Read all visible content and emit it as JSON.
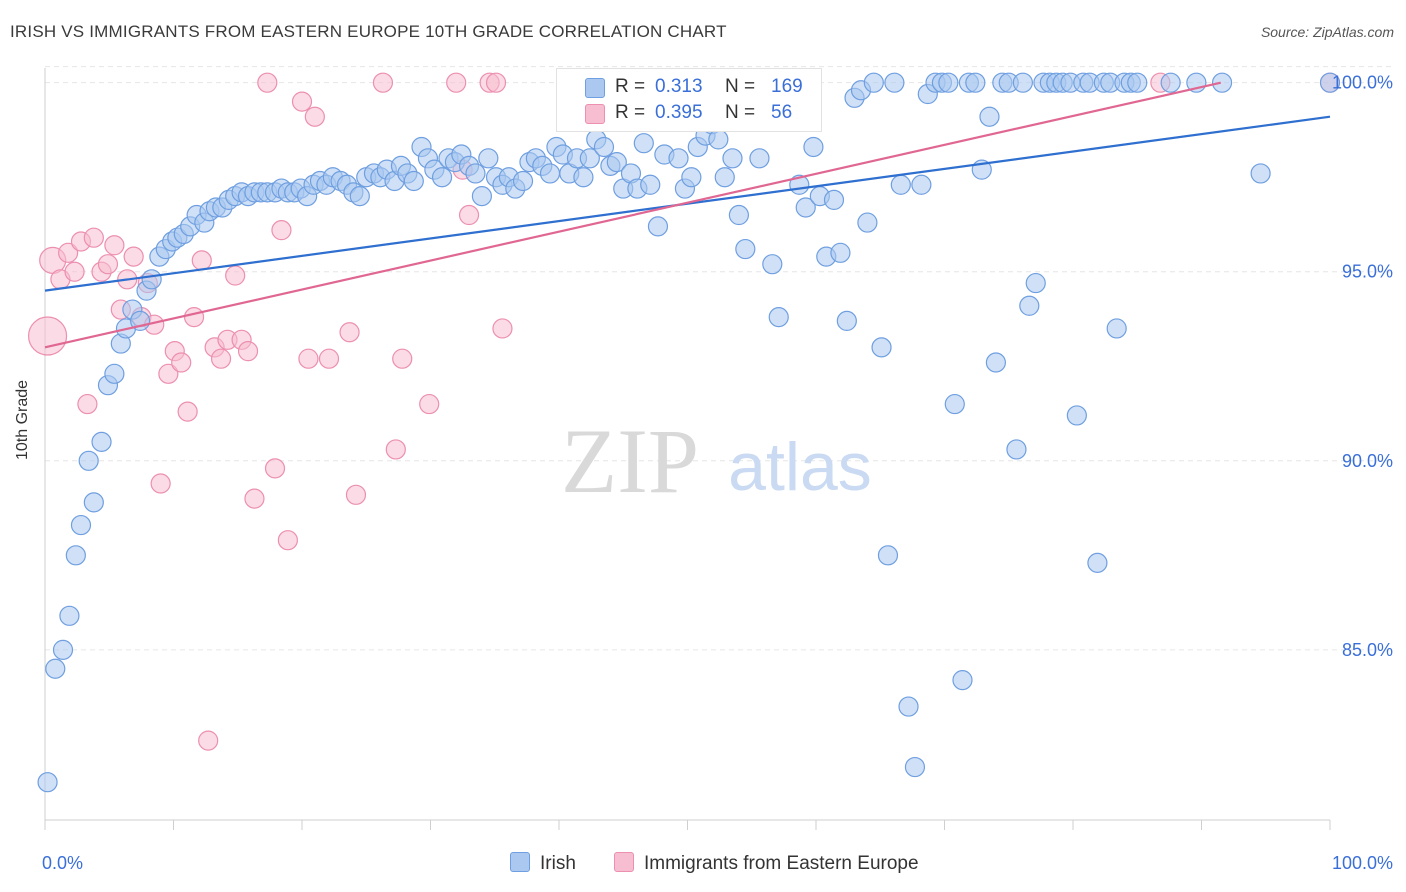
{
  "header": {
    "title": "IRISH VS IMMIGRANTS FROM EASTERN EUROPE 10TH GRADE CORRELATION CHART",
    "source": "Source: ZipAtlas.com"
  },
  "watermark": {
    "zip": "ZIP",
    "atlas": "atlas"
  },
  "legend": {
    "irish": {
      "r_label": "R =",
      "r_value": "0.313",
      "n_label": "N =",
      "n_value": "169"
    },
    "eastern": {
      "r_label": "R =",
      "r_value": "0.395",
      "n_label": "N =",
      "n_value": "56"
    }
  },
  "colors": {
    "irish_fill": "#aac8f0",
    "irish_stroke": "#6f9fe0",
    "irish_line": "#2e6fcf",
    "eastern_fill": "#f7bdd0",
    "eastern_stroke": "#ec8fb0",
    "eastern_line": "#e06792",
    "tick_label": "#3a6fd8",
    "grid": "#e6e6e6"
  },
  "chart_data": {
    "type": "scatter",
    "title": "IRISH VS IMMIGRANTS FROM EASTERN EUROPE 10TH GRADE CORRELATION CHART",
    "xlabel": "",
    "ylabel": "10th Grade",
    "xlim": [
      0,
      100
    ],
    "ylim": [
      80.5,
      100.6
    ],
    "x_tick_labels": [
      "0.0%",
      "100.0%"
    ],
    "y_ticks": [
      85,
      90,
      95,
      100
    ],
    "y_tick_labels": [
      "85.0%",
      "90.0%",
      "95.0%",
      "100.0%"
    ],
    "grid": true,
    "legend_position": "top-center",
    "series": [
      {
        "name": "Irish",
        "r": 0.313,
        "n": 169,
        "trend": {
          "x": [
            0,
            100
          ],
          "y": [
            94.5,
            99.1
          ]
        },
        "points": [
          [
            0.2,
            81.5
          ],
          [
            0.8,
            84.5
          ],
          [
            1.4,
            85.0
          ],
          [
            1.9,
            85.9
          ],
          [
            2.4,
            87.5
          ],
          [
            2.8,
            88.3
          ],
          [
            3.4,
            90.0
          ],
          [
            3.8,
            88.9
          ],
          [
            4.4,
            90.5
          ],
          [
            4.9,
            92.0
          ],
          [
            5.4,
            92.3
          ],
          [
            5.9,
            93.1
          ],
          [
            6.3,
            93.5
          ],
          [
            6.8,
            94.0
          ],
          [
            7.4,
            93.7
          ],
          [
            7.9,
            94.5
          ],
          [
            8.3,
            94.8
          ],
          [
            8.9,
            95.4
          ],
          [
            9.4,
            95.6
          ],
          [
            9.9,
            95.8
          ],
          [
            10.3,
            95.9
          ],
          [
            10.8,
            96.0
          ],
          [
            11.3,
            96.2
          ],
          [
            11.8,
            96.5
          ],
          [
            12.4,
            96.3
          ],
          [
            12.8,
            96.6
          ],
          [
            13.3,
            96.7
          ],
          [
            13.8,
            96.7
          ],
          [
            14.3,
            96.9
          ],
          [
            14.8,
            97.0
          ],
          [
            15.3,
            97.1
          ],
          [
            15.8,
            97.0
          ],
          [
            16.3,
            97.1
          ],
          [
            16.8,
            97.1
          ],
          [
            17.3,
            97.1
          ],
          [
            17.9,
            97.1
          ],
          [
            18.4,
            97.2
          ],
          [
            18.9,
            97.1
          ],
          [
            19.4,
            97.1
          ],
          [
            19.9,
            97.2
          ],
          [
            20.4,
            97.0
          ],
          [
            20.9,
            97.3
          ],
          [
            21.4,
            97.4
          ],
          [
            21.9,
            97.3
          ],
          [
            22.4,
            97.5
          ],
          [
            23.0,
            97.4
          ],
          [
            23.5,
            97.3
          ],
          [
            24.0,
            97.1
          ],
          [
            24.5,
            97.0
          ],
          [
            25.0,
            97.5
          ],
          [
            25.6,
            97.6
          ],
          [
            26.1,
            97.5
          ],
          [
            26.6,
            97.7
          ],
          [
            27.2,
            97.4
          ],
          [
            27.7,
            97.8
          ],
          [
            28.2,
            97.6
          ],
          [
            28.7,
            97.4
          ],
          [
            29.3,
            98.3
          ],
          [
            29.8,
            98.0
          ],
          [
            30.3,
            97.7
          ],
          [
            30.9,
            97.5
          ],
          [
            31.4,
            98.0
          ],
          [
            31.9,
            97.9
          ],
          [
            32.4,
            98.1
          ],
          [
            33.0,
            97.8
          ],
          [
            33.5,
            97.6
          ],
          [
            34.0,
            97.0
          ],
          [
            34.5,
            98.0
          ],
          [
            35.1,
            97.5
          ],
          [
            35.6,
            97.3
          ],
          [
            36.1,
            97.5
          ],
          [
            36.6,
            97.2
          ],
          [
            37.2,
            97.4
          ],
          [
            37.7,
            97.9
          ],
          [
            38.2,
            98.0
          ],
          [
            38.7,
            97.8
          ],
          [
            39.3,
            97.6
          ],
          [
            39.8,
            98.3
          ],
          [
            40.3,
            98.1
          ],
          [
            40.8,
            97.6
          ],
          [
            41.4,
            98.0
          ],
          [
            41.9,
            97.5
          ],
          [
            42.4,
            98.0
          ],
          [
            42.9,
            98.5
          ],
          [
            43.5,
            98.3
          ],
          [
            44.0,
            97.8
          ],
          [
            44.5,
            97.9
          ],
          [
            45.0,
            97.2
          ],
          [
            45.6,
            97.6
          ],
          [
            46.1,
            97.2
          ],
          [
            46.6,
            98.4
          ],
          [
            47.1,
            97.3
          ],
          [
            47.7,
            96.2
          ],
          [
            48.2,
            98.1
          ],
          [
            48.7,
            99.0
          ],
          [
            49.3,
            98.0
          ],
          [
            49.8,
            97.2
          ],
          [
            50.3,
            97.5
          ],
          [
            50.8,
            98.3
          ],
          [
            51.4,
            98.6
          ],
          [
            51.9,
            98.9
          ],
          [
            52.4,
            98.5
          ],
          [
            52.9,
            97.5
          ],
          [
            53.5,
            98.0
          ],
          [
            54.0,
            96.5
          ],
          [
            54.5,
            95.6
          ],
          [
            55.0,
            99.5
          ],
          [
            55.6,
            98.0
          ],
          [
            56.1,
            99.0
          ],
          [
            56.6,
            95.2
          ],
          [
            57.1,
            93.8
          ],
          [
            57.7,
            99.2
          ],
          [
            58.2,
            99.8
          ],
          [
            58.7,
            97.3
          ],
          [
            59.2,
            96.7
          ],
          [
            59.8,
            98.3
          ],
          [
            60.3,
            97.0
          ],
          [
            60.8,
            95.4
          ],
          [
            61.4,
            96.9
          ],
          [
            61.9,
            95.5
          ],
          [
            62.4,
            93.7
          ],
          [
            63.0,
            99.6
          ],
          [
            63.5,
            99.8
          ],
          [
            64.0,
            96.3
          ],
          [
            64.5,
            100.0
          ],
          [
            65.1,
            93.0
          ],
          [
            65.6,
            87.5
          ],
          [
            66.1,
            100.0
          ],
          [
            66.6,
            97.3
          ],
          [
            67.2,
            83.5
          ],
          [
            67.7,
            81.9
          ],
          [
            68.2,
            97.3
          ],
          [
            68.7,
            99.7
          ],
          [
            69.3,
            100.0
          ],
          [
            69.8,
            100.0
          ],
          [
            70.3,
            100.0
          ],
          [
            70.8,
            91.5
          ],
          [
            71.4,
            84.2
          ],
          [
            71.9,
            100.0
          ],
          [
            72.4,
            100.0
          ],
          [
            72.9,
            97.7
          ],
          [
            73.5,
            99.1
          ],
          [
            74.0,
            92.6
          ],
          [
            74.5,
            100.0
          ],
          [
            75.0,
            100.0
          ],
          [
            75.6,
            90.3
          ],
          [
            76.1,
            100.0
          ],
          [
            76.6,
            94.1
          ],
          [
            77.1,
            94.7
          ],
          [
            77.7,
            100.0
          ],
          [
            78.2,
            100.0
          ],
          [
            78.7,
            100.0
          ],
          [
            79.2,
            100.0
          ],
          [
            79.8,
            100.0
          ],
          [
            80.3,
            91.2
          ],
          [
            80.8,
            100.0
          ],
          [
            81.3,
            100.0
          ],
          [
            81.9,
            87.3
          ],
          [
            82.4,
            100.0
          ],
          [
            82.9,
            100.0
          ],
          [
            83.4,
            93.5
          ],
          [
            84.0,
            100.0
          ],
          [
            84.5,
            100.0
          ],
          [
            85.0,
            100.0
          ],
          [
            87.6,
            100.0
          ],
          [
            89.6,
            100.0
          ],
          [
            91.6,
            100.0
          ],
          [
            94.6,
            97.6
          ],
          [
            100.0,
            100.0
          ]
        ]
      },
      {
        "name": "Immigrants from Eastern Europe",
        "r": 0.395,
        "n": 56,
        "trend": {
          "x": [
            0,
            91.5
          ],
          "y": [
            93.0,
            100.0
          ]
        },
        "points": [
          [
            0.2,
            93.3
          ],
          [
            0.6,
            95.3
          ],
          [
            1.2,
            94.8
          ],
          [
            1.8,
            95.5
          ],
          [
            2.3,
            95.0
          ],
          [
            2.8,
            95.8
          ],
          [
            3.3,
            91.5
          ],
          [
            3.8,
            95.9
          ],
          [
            4.4,
            95.0
          ],
          [
            4.9,
            95.2
          ],
          [
            5.4,
            95.7
          ],
          [
            5.9,
            94.0
          ],
          [
            6.4,
            94.8
          ],
          [
            6.9,
            95.4
          ],
          [
            7.5,
            93.8
          ],
          [
            8.0,
            94.7
          ],
          [
            8.5,
            93.6
          ],
          [
            9.0,
            89.4
          ],
          [
            9.6,
            92.3
          ],
          [
            10.1,
            92.9
          ],
          [
            10.6,
            92.6
          ],
          [
            11.1,
            91.3
          ],
          [
            11.6,
            93.8
          ],
          [
            12.2,
            95.3
          ],
          [
            12.7,
            82.6
          ],
          [
            13.2,
            93.0
          ],
          [
            13.7,
            92.7
          ],
          [
            14.2,
            93.2
          ],
          [
            14.8,
            94.9
          ],
          [
            15.3,
            93.2
          ],
          [
            15.8,
            92.9
          ],
          [
            16.3,
            89.0
          ],
          [
            17.3,
            100.0
          ],
          [
            17.9,
            89.8
          ],
          [
            18.4,
            96.1
          ],
          [
            18.9,
            87.9
          ],
          [
            20.0,
            99.5
          ],
          [
            20.5,
            92.7
          ],
          [
            21.0,
            99.1
          ],
          [
            22.1,
            92.7
          ],
          [
            23.7,
            93.4
          ],
          [
            24.2,
            89.1
          ],
          [
            26.3,
            100.0
          ],
          [
            27.3,
            90.3
          ],
          [
            27.8,
            92.7
          ],
          [
            29.9,
            91.5
          ],
          [
            32.0,
            100.0
          ],
          [
            32.5,
            97.7
          ],
          [
            33.0,
            96.5
          ],
          [
            34.6,
            100.0
          ],
          [
            35.1,
            100.0
          ],
          [
            35.6,
            93.5
          ],
          [
            86.8,
            100.0
          ],
          [
            100.0,
            100.0
          ]
        ]
      }
    ]
  }
}
